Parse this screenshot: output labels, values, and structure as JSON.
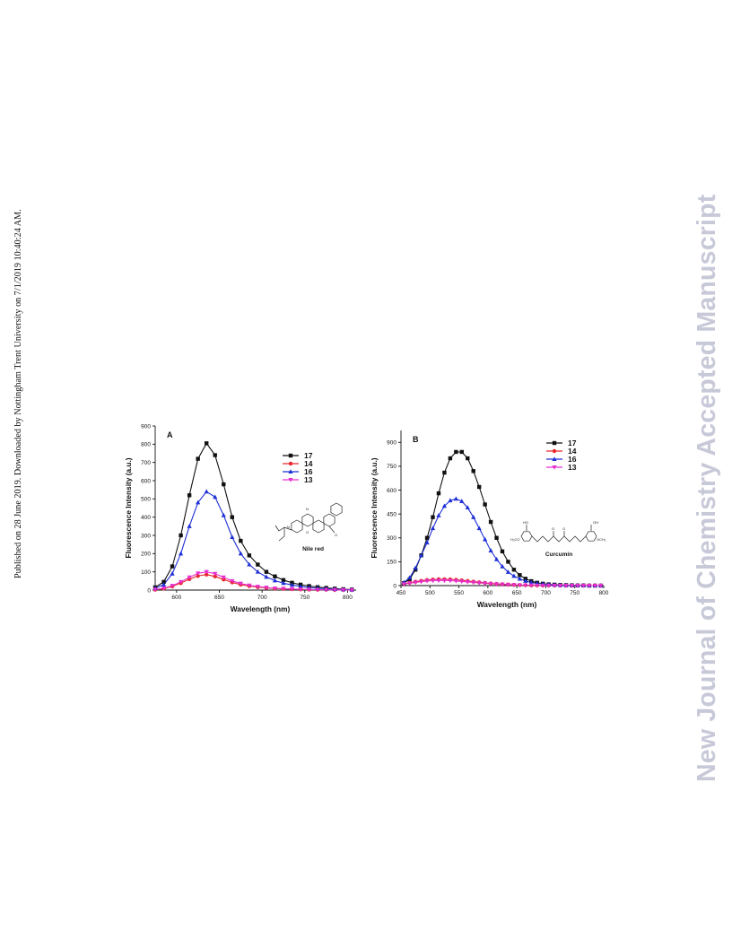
{
  "side_note": "Published on 28 June 2019. Downloaded by Nottingham Trent University on 7/1/2019 10:40:24 AM.",
  "watermark": "New Journal of Chemistry Accepted Manuscript",
  "colors": {
    "17": "#111111",
    "14": "#e8262b",
    "16": "#1f2fd6",
    "13": "#e52fd1"
  },
  "chart_data": [
    {
      "type": "line",
      "panel_label": "A",
      "xlabel": "Wavelength (nm)",
      "ylabel": "Fluorescence Intensity (a.u.)",
      "xlim": [
        575,
        810
      ],
      "ylim": [
        0,
        900
      ],
      "xticks": [
        600,
        650,
        700,
        750,
        800
      ],
      "yticks": [
        0,
        100,
        200,
        300,
        400,
        500,
        600,
        700,
        800,
        900
      ],
      "legend_position": "top-right",
      "annotation": "Nile red",
      "x": [
        575,
        585,
        595,
        605,
        615,
        625,
        635,
        645,
        655,
        665,
        675,
        685,
        695,
        705,
        715,
        725,
        735,
        745,
        755,
        765,
        775,
        785,
        795,
        805
      ],
      "series": [
        {
          "name": "17",
          "color_key": "17",
          "marker": "square",
          "values": [
            15,
            45,
            130,
            300,
            520,
            720,
            805,
            740,
            580,
            400,
            270,
            190,
            140,
            100,
            75,
            55,
            40,
            30,
            22,
            16,
            12,
            8,
            5,
            3
          ]
        },
        {
          "name": "14",
          "color_key": "14",
          "marker": "circle",
          "values": [
            2,
            8,
            20,
            38,
            60,
            78,
            85,
            75,
            58,
            42,
            30,
            22,
            16,
            12,
            9,
            7,
            5,
            4,
            3,
            2,
            2,
            1,
            1,
            0
          ]
        },
        {
          "name": "16",
          "color_key": "16",
          "marker": "triangle-up",
          "values": [
            10,
            30,
            90,
            200,
            350,
            480,
            540,
            510,
            410,
            290,
            200,
            140,
            100,
            72,
            52,
            38,
            28,
            20,
            14,
            10,
            7,
            5,
            3,
            2
          ]
        },
        {
          "name": "13",
          "color_key": "13",
          "marker": "triangle-down",
          "values": [
            3,
            10,
            24,
            45,
            70,
            92,
            100,
            90,
            70,
            50,
            36,
            26,
            19,
            14,
            10,
            8,
            6,
            4,
            3,
            2,
            2,
            1,
            1,
            0
          ]
        }
      ]
    },
    {
      "type": "line",
      "panel_label": "B",
      "xlabel": "Wavelength (nm)",
      "ylabel": "Fluorescence Intensity (a.u.)",
      "xlim": [
        450,
        800
      ],
      "ylim": [
        0,
        975
      ],
      "xticks": [
        450,
        500,
        550,
        600,
        650,
        700,
        750,
        800
      ],
      "yticks": [
        0,
        150,
        300,
        450,
        600,
        750,
        900
      ],
      "legend_position": "top-right",
      "annotation": "Curcumin",
      "x": [
        455,
        465,
        475,
        485,
        495,
        505,
        515,
        525,
        535,
        545,
        555,
        565,
        575,
        585,
        595,
        605,
        615,
        625,
        635,
        645,
        655,
        665,
        675,
        685,
        695,
        705,
        715,
        725,
        735,
        745,
        755,
        765,
        775,
        785,
        795
      ],
      "series": [
        {
          "name": "17",
          "color_key": "17",
          "marker": "square",
          "values": [
            15,
            40,
            100,
            190,
            300,
            430,
            580,
            710,
            800,
            840,
            840,
            800,
            720,
            620,
            510,
            400,
            300,
            215,
            150,
            100,
            66,
            43,
            28,
            18,
            12,
            8,
            6,
            4,
            3,
            2,
            1,
            1,
            0,
            0,
            0
          ]
        },
        {
          "name": "14",
          "color_key": "14",
          "marker": "circle",
          "values": [
            12,
            18,
            24,
            30,
            35,
            38,
            40,
            40,
            39,
            36,
            33,
            29,
            25,
            21,
            17,
            14,
            11,
            9,
            7,
            5,
            4,
            3,
            2,
            2,
            1,
            1,
            1,
            0,
            0,
            0,
            0,
            0,
            0,
            0,
            0
          ]
        },
        {
          "name": "16",
          "color_key": "16",
          "marker": "triangle-up",
          "values": [
            20,
            50,
            110,
            190,
            270,
            360,
            440,
            500,
            535,
            545,
            530,
            490,
            430,
            360,
            290,
            220,
            165,
            120,
            85,
            60,
            42,
            29,
            20,
            14,
            10,
            7,
            5,
            3,
            2,
            2,
            1,
            1,
            0,
            0,
            0
          ]
        },
        {
          "name": "13",
          "color_key": "13",
          "marker": "triangle-down",
          "values": [
            10,
            15,
            20,
            25,
            29,
            31,
            32,
            32,
            31,
            29,
            26,
            23,
            20,
            17,
            14,
            11,
            9,
            7,
            5,
            4,
            3,
            2,
            2,
            1,
            1,
            1,
            0,
            0,
            0,
            0,
            0,
            0,
            0,
            0,
            0
          ]
        }
      ]
    }
  ]
}
